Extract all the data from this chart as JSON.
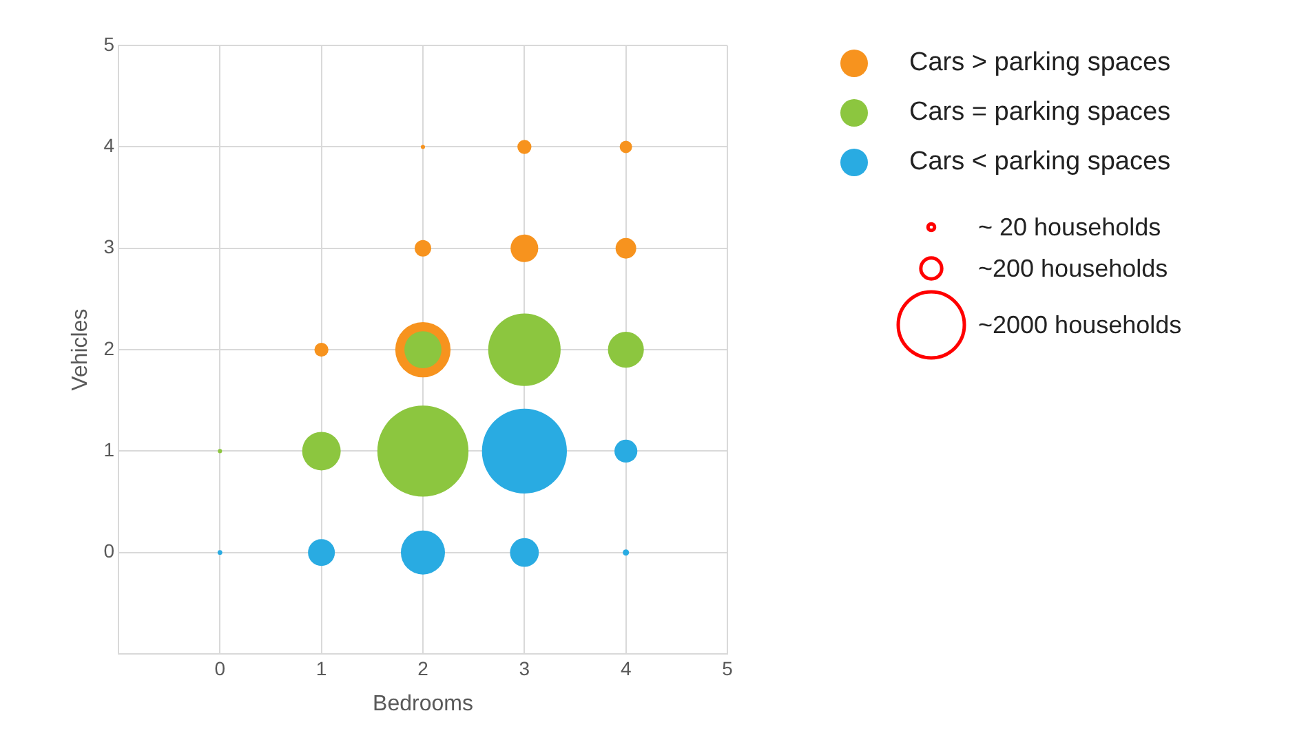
{
  "chart_data": {
    "type": "bubble",
    "xlabel": "Bedrooms",
    "ylabel": "Vehicles",
    "xlim": [
      -1,
      5
    ],
    "xticks": [
      {
        "value": -1,
        "label": null
      },
      0,
      1,
      2,
      3,
      4,
      5
    ],
    "ylim": [
      -1,
      5
    ],
    "yticks": [
      {
        "value": -1,
        "label": null
      },
      0,
      1,
      2,
      3,
      4,
      5
    ],
    "grid": true,
    "legend": "right",
    "size_legend": [
      {
        "value": 20,
        "label": "~ 20 households"
      },
      {
        "value": 200,
        "label": "~200 households"
      },
      {
        "value": 2000,
        "label": "~2000 households"
      }
    ],
    "series": [
      {
        "name": "Cars > parking spaces",
        "color": "#f7931e",
        "x": [
          2,
          3,
          4,
          2,
          3,
          4,
          1,
          2
        ],
        "values": [
          4,
          4,
          4,
          3,
          3,
          3,
          2,
          2
        ],
        "sizes": [
          8,
          90,
          70,
          125,
          350,
          195,
          90,
          1400
        ]
      },
      {
        "name": "Cars = parking spaces",
        "color": "#8cc63f",
        "x": [
          2,
          3,
          4,
          0,
          1,
          2
        ],
        "values": [
          2,
          2,
          2,
          1,
          1,
          1
        ],
        "sizes": [
          630,
          2400,
          590,
          8,
          680,
          3800
        ]
      },
      {
        "name": "Cars < parking spaces",
        "color": "#29abe2",
        "x": [
          3,
          4,
          0,
          1,
          2,
          3,
          4
        ],
        "values": [
          1,
          1,
          0,
          0,
          0,
          0,
          0
        ],
        "sizes": [
          3300,
          240,
          10,
          330,
          890,
          380,
          18
        ]
      }
    ]
  }
}
